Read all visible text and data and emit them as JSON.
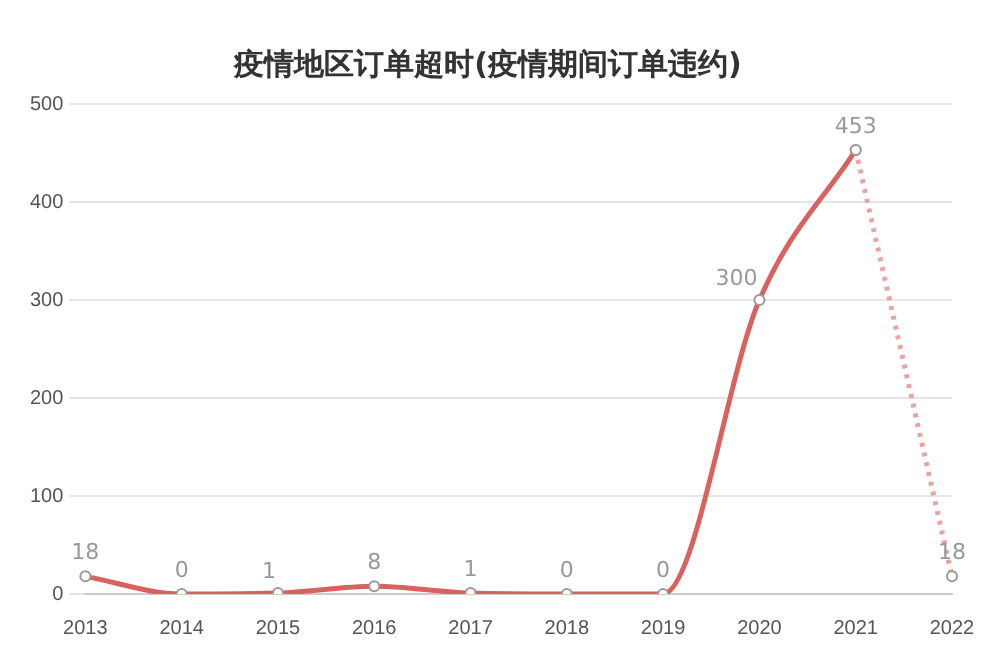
{
  "chart_data": {
    "type": "line",
    "title": "疫情地区订单超时(疫情期间订单违约)",
    "categories": [
      "2013",
      "2014",
      "2015",
      "2016",
      "2017",
      "2018",
      "2019",
      "2020",
      "2021",
      "2022"
    ],
    "series": [
      {
        "color": "#d9625f",
        "line_style": "solid",
        "values": [
          18,
          0,
          1,
          8,
          1,
          0,
          0,
          300,
          453,
          null
        ],
        "value_labels": [
          "18",
          "0",
          "1",
          "8",
          "1",
          "0",
          "0",
          "300",
          "453",
          null
        ]
      },
      {
        "color": "#e9a3a3",
        "line_style": "dotted",
        "values": [
          null,
          null,
          null,
          null,
          null,
          null,
          null,
          null,
          453,
          18
        ],
        "value_labels": [
          null,
          null,
          null,
          null,
          null,
          null,
          null,
          null,
          null,
          "18"
        ]
      }
    ],
    "ylim": [
      0,
      500
    ],
    "yticks": [
      0,
      100,
      200,
      300,
      400,
      500
    ],
    "grid": "y",
    "legend": false,
    "marker": "circle"
  }
}
